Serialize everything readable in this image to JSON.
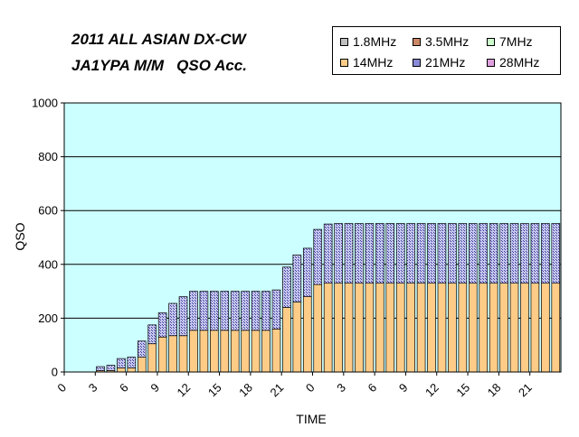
{
  "title_line1": "2011 ALL ASIAN DX-CW",
  "title_line2": "JA1YPA M/M   QSO Acc.",
  "chart_data": {
    "type": "bar",
    "stacked": true,
    "xlabel": "TIME",
    "ylabel": "QSO",
    "ylim": [
      0,
      1000
    ],
    "yticks": [
      0,
      200,
      400,
      600,
      800,
      1000
    ],
    "xtick_labels": [
      "0",
      "3",
      "6",
      "9",
      "12",
      "15",
      "18",
      "21",
      "0",
      "3",
      "6",
      "9",
      "12",
      "15",
      "18",
      "21"
    ],
    "num_bars": 48,
    "grid": true,
    "legend_position": "top-right",
    "plot_background": "#ccffff",
    "series": [
      {
        "name": "1.8MHz",
        "color": "#c0c0c0",
        "values": [
          0,
          0,
          0,
          0,
          0,
          0,
          0,
          0,
          0,
          0,
          0,
          0,
          0,
          0,
          0,
          0,
          0,
          0,
          0,
          0,
          0,
          0,
          0,
          0,
          0,
          0,
          0,
          0,
          0,
          0,
          0,
          0,
          0,
          0,
          0,
          0,
          0,
          0,
          0,
          0,
          0,
          0,
          0,
          0,
          0,
          0,
          0,
          0
        ]
      },
      {
        "name": "3.5MHz",
        "color": "#cc8866",
        "values": [
          0,
          0,
          0,
          0,
          0,
          0,
          0,
          0,
          0,
          0,
          0,
          0,
          0,
          0,
          0,
          0,
          0,
          0,
          0,
          0,
          0,
          0,
          0,
          0,
          0,
          0,
          0,
          0,
          0,
          0,
          0,
          0,
          0,
          0,
          0,
          0,
          0,
          0,
          0,
          0,
          0,
          0,
          0,
          0,
          0,
          0,
          0,
          0
        ]
      },
      {
        "name": "7MHz",
        "color": "#ccffcc",
        "values": [
          0,
          0,
          0,
          0,
          0,
          0,
          0,
          0,
          0,
          0,
          0,
          0,
          0,
          0,
          0,
          0,
          0,
          0,
          0,
          0,
          0,
          0,
          0,
          0,
          0,
          0,
          0,
          0,
          0,
          0,
          0,
          0,
          0,
          0,
          0,
          0,
          0,
          0,
          0,
          0,
          0,
          0,
          0,
          0,
          0,
          0,
          0,
          0
        ]
      },
      {
        "name": "14MHz",
        "color": "#ffcc88",
        "values": [
          0,
          0,
          0,
          5,
          5,
          15,
          15,
          55,
          105,
          130,
          135,
          135,
          155,
          155,
          155,
          155,
          155,
          155,
          155,
          155,
          160,
          240,
          260,
          280,
          325,
          330,
          330,
          330,
          330,
          330,
          330,
          330,
          330,
          330,
          330,
          330,
          330,
          330,
          330,
          330,
          330,
          330,
          330,
          330,
          330,
          330,
          330,
          330
        ]
      },
      {
        "name": "21MHz",
        "color": "#8a8ad8",
        "values": [
          0,
          0,
          0,
          15,
          20,
          35,
          40,
          60,
          70,
          90,
          120,
          145,
          145,
          145,
          145,
          145,
          145,
          145,
          145,
          145,
          145,
          150,
          175,
          180,
          205,
          220,
          222,
          222,
          222,
          222,
          222,
          222,
          222,
          222,
          222,
          222,
          222,
          222,
          222,
          222,
          222,
          222,
          222,
          222,
          222,
          222,
          222,
          222
        ]
      },
      {
        "name": "28MHz",
        "color": "#e0a0e0",
        "values": [
          0,
          0,
          0,
          0,
          0,
          0,
          0,
          0,
          0,
          0,
          0,
          0,
          0,
          0,
          0,
          0,
          0,
          0,
          0,
          0,
          0,
          0,
          0,
          0,
          0,
          0,
          0,
          0,
          0,
          0,
          0,
          0,
          0,
          0,
          0,
          0,
          0,
          0,
          0,
          0,
          0,
          0,
          0,
          0,
          0,
          0,
          0,
          0
        ]
      }
    ]
  }
}
